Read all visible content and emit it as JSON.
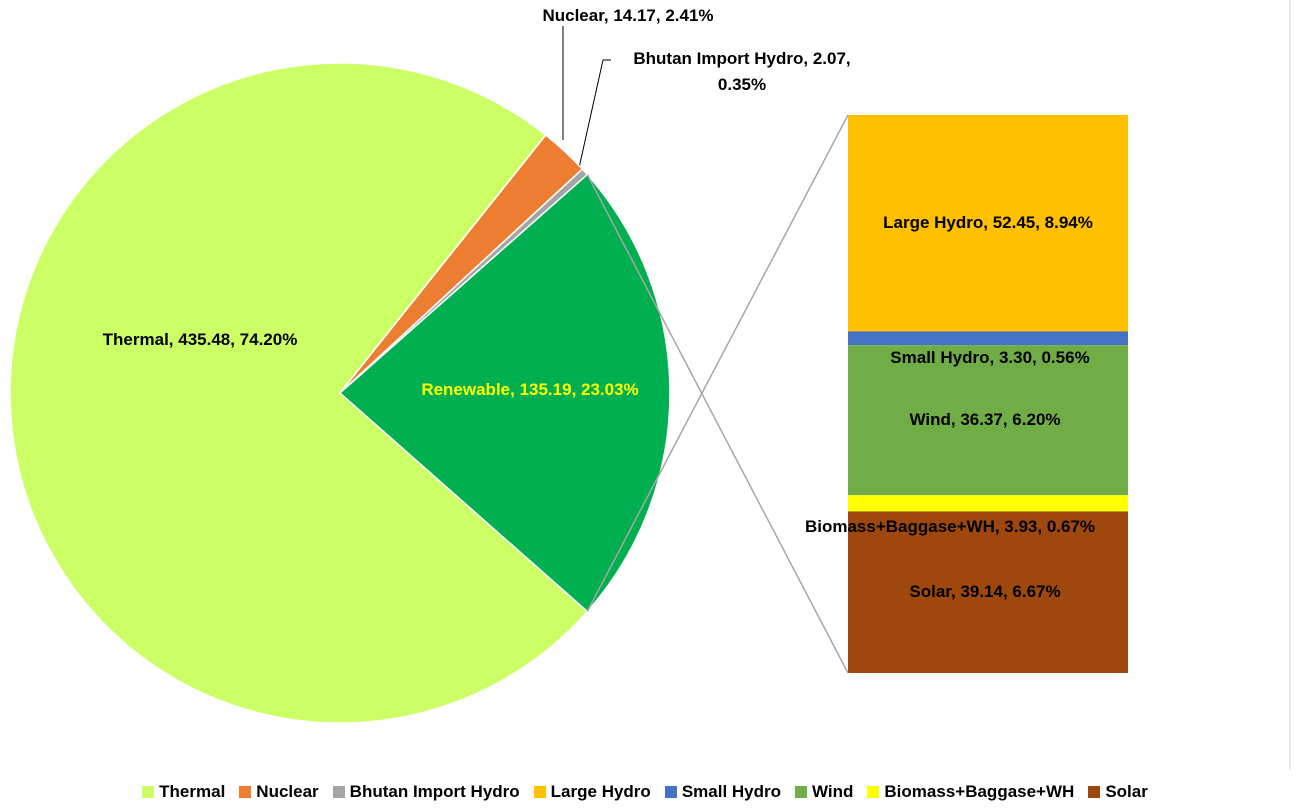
{
  "chart_data": {
    "type": "pie-of-bar",
    "pie": {
      "categories": [
        "Thermal",
        "Nuclear",
        "Bhutan Import Hydro",
        "Renewable"
      ],
      "values": [
        435.48,
        14.17,
        2.07,
        135.19
      ],
      "value_labels": [
        "Thermal, 435.48, 74.20%",
        "Nuclear, 14.17, 2.41%",
        "Bhutan Import Hydro, 2.07, 0.35%",
        "Renewable, 135.19, 23.03%"
      ],
      "colors": [
        "#ccff66",
        "#ed7d31",
        "#a5a5a5",
        "#00b050"
      ]
    },
    "bar": {
      "categories": [
        "Large Hydro",
        "Small Hydro",
        "Wind",
        "Biomass+Baggase+WH",
        "Solar"
      ],
      "values": [
        52.45,
        3.3,
        36.37,
        3.93,
        39.14
      ],
      "value_labels": [
        "Large Hydro, 52.45, 8.94%",
        "Small Hydro, 3.30, 0.56%",
        "Wind, 36.37, 6.20%",
        "Biomass+Baggase+WH, 3.93, 0.67%",
        "Solar, 39.14, 6.67%"
      ],
      "colors": [
        "#ffc000",
        "#4472c4",
        "#70ad47",
        "#ffff00",
        "#9e480e"
      ]
    }
  }
}
